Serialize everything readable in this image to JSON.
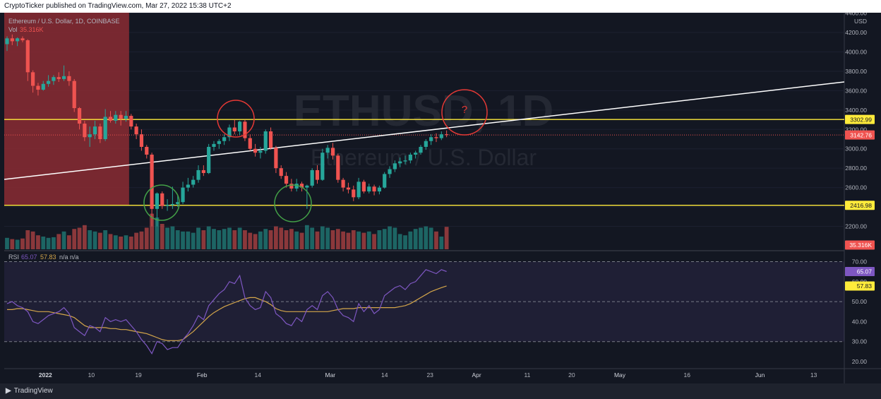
{
  "header": {
    "published_text": "CryptoTicker published on TradingView.com, Mar 27, 2022 15:38 UTC+2"
  },
  "footer": {
    "logo_icon": "tradingview-logo-icon",
    "brand": "TradingView"
  },
  "legend": {
    "symbol": "Ethereum / U.S. Dollar, 1D, COINBASE",
    "vol_label": "Vol",
    "vol_value": "35.316K",
    "rsi_label": "RSI",
    "rsi_value": "65.07",
    "rsi_ma_value": "57.83",
    "rsi_na": "n/a n/a"
  },
  "watermark": {
    "ticker": "ETHUSD, 1D",
    "name": "Ethereum / U.S. Dollar"
  },
  "annotation": {
    "question_mark": "?"
  },
  "price_axis": {
    "unit": "USD",
    "ticks": [
      "4400.00",
      "4200.00",
      "4000.00",
      "3800.00",
      "3600.00",
      "3400.00",
      "3200.00",
      "3000.00",
      "2800.00",
      "2600.00",
      "2400.00",
      "2200.00"
    ],
    "resistance_label": "3302.99",
    "current_label": "3142.76",
    "support_label": "2416.98",
    "volume_label": "35.316K"
  },
  "rsi_axis": {
    "ticks": [
      "70.00",
      "60.00",
      "50.00",
      "40.00",
      "30.00",
      "20.00"
    ],
    "rsi_label": "65.07",
    "rsi_ma_label": "57.83"
  },
  "time_axis": {
    "labels": [
      "2022",
      "10",
      "19",
      "Feb",
      "14",
      "Mar",
      "14",
      "23",
      "Apr",
      "11",
      "20",
      "May",
      "16",
      "Jun",
      "13"
    ]
  },
  "colors": {
    "background": "#131722",
    "up": "#26a69a",
    "down": "#ef5350",
    "level": "#ffeb3b",
    "trendline": "#ffffff",
    "rsi": "#7e57c2",
    "rsi_ma": "#d4a64a",
    "highlight_zone": "#8b2c33",
    "circle_red": "#e53935",
    "circle_green": "#43a047"
  },
  "chart_data": [
    {
      "type": "candlestick",
      "title": "Ethereum / U.S. Dollar, 1D, COINBASE",
      "ylabel": "USD",
      "ylim": [
        2000,
        4470
      ],
      "x": [
        "2022-01-01",
        "2022-01-02",
        "2022-01-03",
        "2022-01-04",
        "2022-01-05",
        "2022-01-06",
        "2022-01-07",
        "2022-01-08",
        "2022-01-09",
        "2022-01-10",
        "2022-01-11",
        "2022-01-12",
        "2022-01-13",
        "2022-01-14",
        "2022-01-15",
        "2022-01-16",
        "2022-01-17",
        "2022-01-18",
        "2022-01-19",
        "2022-01-20",
        "2022-01-21",
        "2022-01-22",
        "2022-01-23",
        "2022-01-24",
        "2022-01-25",
        "2022-01-26",
        "2022-01-27",
        "2022-01-28",
        "2022-01-29",
        "2022-01-30",
        "2022-01-31",
        "2022-02-01",
        "2022-02-02",
        "2022-02-03",
        "2022-02-04",
        "2022-02-05",
        "2022-02-06",
        "2022-02-07",
        "2022-02-08",
        "2022-02-09",
        "2022-02-10",
        "2022-02-11",
        "2022-02-12",
        "2022-02-13",
        "2022-02-14",
        "2022-02-15",
        "2022-02-16",
        "2022-02-17",
        "2022-02-18",
        "2022-02-19",
        "2022-02-20",
        "2022-02-21",
        "2022-02-22",
        "2022-02-23",
        "2022-02-24",
        "2022-02-25",
        "2022-02-26",
        "2022-02-27",
        "2022-02-28",
        "2022-03-01",
        "2022-03-02",
        "2022-03-03",
        "2022-03-04",
        "2022-03-05",
        "2022-03-06",
        "2022-03-07",
        "2022-03-08",
        "2022-03-09",
        "2022-03-10",
        "2022-03-11",
        "2022-03-12",
        "2022-03-13",
        "2022-03-14",
        "2022-03-15",
        "2022-03-16",
        "2022-03-17",
        "2022-03-18",
        "2022-03-19",
        "2022-03-20",
        "2022-03-21",
        "2022-03-22",
        "2022-03-23",
        "2022-03-24",
        "2022-03-25",
        "2022-03-26",
        "2022-03-27"
      ],
      "ohlc": [
        [
          4080,
          4160,
          4010,
          4140
        ],
        [
          4140,
          4180,
          4070,
          4110
        ],
        [
          4110,
          4150,
          4060,
          4140
        ],
        [
          4140,
          4160,
          4100,
          4120
        ],
        [
          4120,
          4130,
          3700,
          3790
        ],
        [
          3790,
          3810,
          3580,
          3650
        ],
        [
          3650,
          3680,
          3550,
          3610
        ],
        [
          3610,
          3700,
          3600,
          3670
        ],
        [
          3670,
          3760,
          3640,
          3700
        ],
        [
          3700,
          3760,
          3660,
          3740
        ],
        [
          3740,
          3790,
          3690,
          3720
        ],
        [
          3720,
          3860,
          3700,
          3750
        ],
        [
          3750,
          3800,
          3650,
          3700
        ],
        [
          3700,
          3720,
          3380,
          3420
        ],
        [
          3420,
          3430,
          3200,
          3260
        ],
        [
          3260,
          3290,
          3080,
          3120
        ],
        [
          3120,
          3230,
          3020,
          3150
        ],
        [
          3150,
          3290,
          3100,
          3230
        ],
        [
          3230,
          3260,
          3060,
          3100
        ],
        [
          3100,
          3410,
          3080,
          3330
        ],
        [
          3330,
          3390,
          3270,
          3290
        ],
        [
          3290,
          3390,
          3260,
          3350
        ],
        [
          3350,
          3390,
          3240,
          3310
        ],
        [
          3310,
          3390,
          3280,
          3340
        ],
        [
          3340,
          3360,
          3200,
          3230
        ],
        [
          3230,
          3260,
          3100,
          3150
        ],
        [
          3150,
          3200,
          2980,
          3020
        ],
        [
          3020,
          3040,
          2900,
          2940
        ],
        [
          2940,
          2960,
          2200,
          2380
        ],
        [
          2380,
          2550,
          2200,
          2540
        ],
        [
          2540,
          2560,
          2380,
          2410
        ],
        [
          2410,
          2480,
          2360,
          2420
        ],
        [
          2420,
          2610,
          2380,
          2430
        ],
        [
          2430,
          2520,
          2400,
          2450
        ],
        [
          2450,
          2660,
          2430,
          2600
        ],
        [
          2600,
          2700,
          2560,
          2630
        ],
        [
          2630,
          2720,
          2600,
          2680
        ],
        [
          2680,
          2830,
          2650,
          2780
        ],
        [
          2780,
          2830,
          2720,
          2750
        ],
        [
          2750,
          3050,
          2740,
          3020
        ],
        [
          3020,
          3080,
          2980,
          3050
        ],
        [
          3050,
          3100,
          3000,
          3080
        ],
        [
          3080,
          3150,
          3040,
          3120
        ],
        [
          3120,
          3250,
          3080,
          3220
        ],
        [
          3220,
          3300,
          3150,
          3180
        ],
        [
          3180,
          3290,
          3140,
          3280
        ],
        [
          3280,
          3300,
          3080,
          3110
        ],
        [
          3110,
          3150,
          2980,
          3000
        ],
        [
          3000,
          3050,
          2920,
          2960
        ],
        [
          2960,
          3020,
          2900,
          2980
        ],
        [
          2980,
          3200,
          2950,
          3180
        ],
        [
          3180,
          3220,
          2990,
          3010
        ],
        [
          3010,
          3030,
          2750,
          2800
        ],
        [
          2800,
          2830,
          2690,
          2720
        ],
        [
          2720,
          2760,
          2600,
          2640
        ],
        [
          2640,
          2690,
          2560,
          2590
        ],
        [
          2590,
          2690,
          2560,
          2640
        ],
        [
          2640,
          2660,
          2560,
          2600
        ],
        [
          2600,
          2630,
          2380,
          2620
        ],
        [
          2620,
          2800,
          2600,
          2780
        ],
        [
          2780,
          2830,
          2640,
          2680
        ],
        [
          2680,
          3000,
          2670,
          2960
        ],
        [
          2960,
          3040,
          2900,
          3010
        ],
        [
          3010,
          3060,
          2890,
          2930
        ],
        [
          2930,
          2950,
          2650,
          2680
        ],
        [
          2680,
          2700,
          2560,
          2600
        ],
        [
          2600,
          2650,
          2540,
          2580
        ],
        [
          2580,
          2620,
          2460,
          2500
        ],
        [
          2500,
          2700,
          2480,
          2660
        ],
        [
          2660,
          2680,
          2540,
          2560
        ],
        [
          2560,
          2640,
          2540,
          2610
        ],
        [
          2610,
          2630,
          2520,
          2560
        ],
        [
          2560,
          2620,
          2530,
          2600
        ],
        [
          2600,
          2760,
          2590,
          2740
        ],
        [
          2740,
          2820,
          2700,
          2790
        ],
        [
          2790,
          2880,
          2760,
          2850
        ],
        [
          2850,
          2910,
          2810,
          2870
        ],
        [
          2870,
          2930,
          2840,
          2880
        ],
        [
          2880,
          2960,
          2850,
          2940
        ],
        [
          2940,
          2980,
          2900,
          2960
        ],
        [
          2960,
          3040,
          2940,
          3020
        ],
        [
          3020,
          3100,
          2990,
          3080
        ],
        [
          3080,
          3150,
          3040,
          3120
        ],
        [
          3120,
          3160,
          3070,
          3110
        ],
        [
          3110,
          3180,
          3090,
          3150
        ],
        [
          3150,
          3190,
          3120,
          3142.76
        ]
      ],
      "volume": [
        18,
        16,
        15,
        17,
        30,
        28,
        22,
        20,
        18,
        19,
        24,
        28,
        22,
        32,
        34,
        38,
        30,
        28,
        26,
        30,
        24,
        22,
        20,
        22,
        20,
        26,
        28,
        34,
        56,
        50,
        40,
        34,
        36,
        30,
        28,
        28,
        26,
        34,
        30,
        36,
        32,
        30,
        32,
        34,
        30,
        34,
        30,
        26,
        24,
        28,
        32,
        30,
        36,
        34,
        30,
        32,
        28,
        26,
        38,
        34,
        28,
        36,
        34,
        30,
        32,
        28,
        26,
        30,
        28,
        26,
        28,
        24,
        30,
        32,
        36,
        34,
        24,
        22,
        28,
        32,
        34,
        36,
        34,
        28,
        20,
        35.316
      ],
      "levels": {
        "resistance": 3302.99,
        "support": 2416.98,
        "current": 3142.76
      }
    },
    {
      "type": "line",
      "title": "RSI",
      "ylim": [
        15,
        75
      ],
      "x_count": 86,
      "series": [
        {
          "name": "RSI",
          "values": [
            49,
            50,
            48,
            47,
            45,
            40,
            39,
            41,
            43,
            44,
            45,
            47,
            44,
            37,
            35,
            33,
            38,
            37,
            35,
            42,
            40,
            41,
            40,
            41,
            38,
            35,
            31,
            28,
            24,
            30,
            29,
            26,
            27,
            27,
            31,
            34,
            38,
            43,
            41,
            48,
            51,
            54,
            56,
            60,
            59,
            63,
            52,
            48,
            46,
            47,
            55,
            52,
            44,
            42,
            39,
            38,
            42,
            40,
            46,
            48,
            46,
            53,
            55,
            52,
            46,
            43,
            42,
            40,
            49,
            45,
            48,
            44,
            46,
            53,
            55,
            57,
            58,
            56,
            59,
            60,
            63,
            66,
            65,
            64,
            66,
            65.07
          ]
        },
        {
          "name": "MA",
          "values": [
            46,
            46,
            46.5,
            46.5,
            46,
            45.5,
            45,
            45,
            45,
            44.5,
            44,
            43.5,
            43,
            42,
            40,
            38,
            37,
            37,
            37,
            37,
            36.5,
            36.5,
            36,
            36,
            35.5,
            35,
            34.5,
            34,
            33,
            32,
            31,
            30.5,
            30.5,
            30.5,
            31,
            33,
            35,
            37.5,
            40,
            42.5,
            44.5,
            46,
            47.5,
            48.5,
            49.5,
            50.5,
            51.5,
            52,
            52,
            51,
            50,
            48.5,
            46.5,
            45.5,
            45,
            45,
            45,
            45,
            45,
            45,
            45,
            45,
            45,
            45.5,
            46,
            46.5,
            46.5,
            46.5,
            47,
            47,
            47,
            47,
            47,
            47,
            47,
            47,
            47.5,
            48,
            49,
            50.5,
            52,
            53.5,
            55,
            56,
            57,
            57.83
          ]
        }
      ]
    }
  ]
}
